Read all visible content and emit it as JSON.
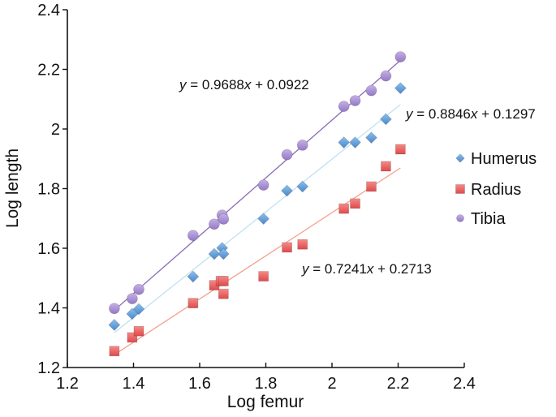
{
  "chart_data": {
    "type": "scatter",
    "title": "",
    "xlabel": "Log femur",
    "ylabel": "Log length",
    "xlim": [
      1.2,
      2.4
    ],
    "ylim": [
      1.2,
      2.4
    ],
    "xticks": [
      "1.2",
      "1.4",
      "1.6",
      "1.8",
      "2",
      "2.2",
      "2.4"
    ],
    "yticks": [
      "1.2",
      "1.4",
      "1.6",
      "1.8",
      "2",
      "2.2",
      "2.4"
    ],
    "xtick_values": [
      1.2,
      1.4,
      1.6,
      1.8,
      2.0,
      2.2,
      2.4
    ],
    "ytick_values": [
      1.2,
      1.4,
      1.6,
      1.8,
      2.0,
      2.2,
      2.4
    ],
    "grid": false,
    "legend_position": "right",
    "series": [
      {
        "name": "Humerus",
        "marker": "diamond",
        "color": "#5b9bd5",
        "trend_color": "#bfe3f2",
        "trendline": {
          "slope": 0.8846,
          "intercept": 0.1297,
          "label": "y = 0.8846x + 0.1297",
          "label_parts": [
            "y",
            " = 0.8846",
            "x",
            " + 0.1297"
          ]
        },
        "x": [
          1.342,
          1.396,
          1.416,
          1.58,
          1.644,
          1.668,
          1.672,
          1.793,
          1.864,
          1.911,
          2.036,
          2.07,
          2.119,
          2.163,
          2.207
        ],
        "y": [
          1.343,
          1.38,
          1.396,
          1.505,
          1.581,
          1.601,
          1.581,
          1.699,
          1.793,
          1.807,
          1.955,
          1.955,
          1.971,
          2.033,
          2.137
        ]
      },
      {
        "name": "Radius",
        "marker": "square",
        "color": "#e8575a",
        "trend_color": "#f4a08c",
        "trendline": {
          "slope": 0.7241,
          "intercept": 0.2713,
          "label": "y = 0.7241x + 0.2713",
          "label_parts": [
            "y",
            " = 0.7241",
            "x",
            " + 0.2713"
          ]
        },
        "x": [
          1.342,
          1.396,
          1.416,
          1.58,
          1.644,
          1.664,
          1.672,
          1.672,
          1.793,
          1.864,
          1.911,
          2.036,
          2.07,
          2.119,
          2.163,
          2.207
        ],
        "y": [
          1.255,
          1.301,
          1.322,
          1.416,
          1.476,
          1.49,
          1.49,
          1.447,
          1.506,
          1.603,
          1.613,
          1.733,
          1.75,
          1.807,
          1.875,
          1.932
        ]
      },
      {
        "name": "Tibia",
        "marker": "circle",
        "color": "#a98fd4",
        "trend_color": "#8b6bb5",
        "trendline": {
          "slope": 0.9688,
          "intercept": 0.0922,
          "label": "y = 0.9688x + 0.0922",
          "label_parts": [
            "y",
            " = 0.9688",
            "x",
            " + 0.0922"
          ]
        },
        "x": [
          1.342,
          1.396,
          1.416,
          1.58,
          1.644,
          1.668,
          1.672,
          1.793,
          1.864,
          1.911,
          2.036,
          2.07,
          2.119,
          2.163,
          2.207
        ],
        "y": [
          1.398,
          1.431,
          1.462,
          1.643,
          1.681,
          1.711,
          1.698,
          1.812,
          1.914,
          1.946,
          2.076,
          2.095,
          2.129,
          2.178,
          2.242
        ]
      }
    ]
  }
}
